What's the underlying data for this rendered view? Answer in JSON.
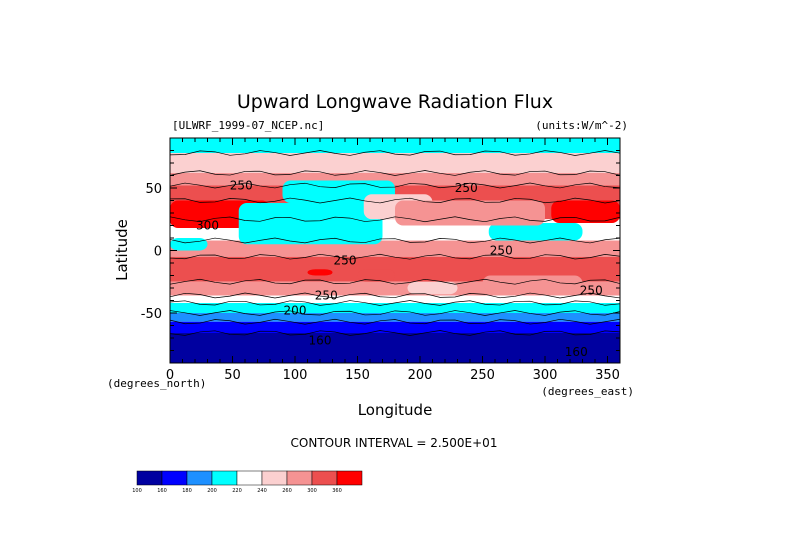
{
  "chart_data": {
    "type": "heatmap",
    "title": "Upward Longwave Radiation Flux",
    "subtitle_left": "[ULWRF_1999-07_NCEP.nc]",
    "subtitle_right": "(units:W/m^-2)",
    "xlabel": "Longitude",
    "ylabel": "Latitude",
    "x_unit_label": "(degrees_east)",
    "y_unit_label": "(degrees_north)",
    "xlim": [
      0,
      360
    ],
    "ylim": [
      -90,
      90
    ],
    "x_ticks": [
      0,
      50,
      100,
      150,
      200,
      250,
      300,
      350
    ],
    "y_ticks": [
      -50,
      0,
      50
    ],
    "contour_interval_text": "CONTOUR INTERVAL = 2.500E+01",
    "contour_labels": [
      {
        "text": "250",
        "lon": 57,
        "lat": 52
      },
      {
        "text": "300",
        "lon": 30,
        "lat": 20
      },
      {
        "text": "250",
        "lon": 237,
        "lat": 50
      },
      {
        "text": "250",
        "lon": 140,
        "lat": -8
      },
      {
        "text": "250",
        "lon": 265,
        "lat": 0
      },
      {
        "text": "250",
        "lon": 125,
        "lat": -36
      },
      {
        "text": "200",
        "lon": 100,
        "lat": -48
      },
      {
        "text": "250",
        "lon": 337,
        "lat": -32
      },
      {
        "text": "160",
        "lon": 120,
        "lat": -72
      },
      {
        "text": "160",
        "lon": 325,
        "lat": -81
      }
    ],
    "colorbar": {
      "levels": [
        "100",
        "160",
        "180",
        "200",
        "220",
        "240",
        "260",
        "300",
        "360"
      ],
      "colors": [
        "#0000a0",
        "#0000ff",
        "#1e90ff",
        "#00ffff",
        "#ffffff",
        "#fbd0d0",
        "#f59393",
        "#ec4f4f",
        "#ff0000"
      ]
    },
    "bands": [
      {
        "lat_top": 90,
        "lat_bottom": 78,
        "color": "#00ffff"
      },
      {
        "lat_top": 78,
        "lat_bottom": 62,
        "color": "#fbd0d0"
      },
      {
        "lat_top": 62,
        "lat_bottom": 52,
        "color": "#f59393"
      },
      {
        "lat_top": 52,
        "lat_bottom": 40,
        "color": "#ec4f4f"
      },
      {
        "lat_top": 40,
        "lat_bottom": 25,
        "color": "#ec4f4f"
      },
      {
        "lat_top": 25,
        "lat_bottom": 8,
        "color": "#ffffff"
      },
      {
        "lat_top": 8,
        "lat_bottom": -5,
        "color": "#f59393"
      },
      {
        "lat_top": -5,
        "lat_bottom": -25,
        "color": "#ec4f4f"
      },
      {
        "lat_top": -25,
        "lat_bottom": -36,
        "color": "#f59393"
      },
      {
        "lat_top": -36,
        "lat_bottom": -42,
        "color": "#ffffff"
      },
      {
        "lat_top": -42,
        "lat_bottom": -50,
        "color": "#00ffff"
      },
      {
        "lat_top": -50,
        "lat_bottom": -57,
        "color": "#1e90ff"
      },
      {
        "lat_top": -57,
        "lat_bottom": -66,
        "color": "#0000ff"
      },
      {
        "lat_top": -66,
        "lat_bottom": -90,
        "color": "#0000a0"
      }
    ],
    "patches": [
      {
        "lon": [
          0,
          80
        ],
        "lat": [
          40,
          18
        ],
        "color": "#ff0000"
      },
      {
        "lon": [
          55,
          170
        ],
        "lat": [
          38,
          5
        ],
        "color": "#00ffff"
      },
      {
        "lon": [
          90,
          180
        ],
        "lat": [
          56,
          38
        ],
        "color": "#00ffff"
      },
      {
        "lon": [
          155,
          210
        ],
        "lat": [
          45,
          25
        ],
        "color": "#fbd0d0"
      },
      {
        "lon": [
          255,
          330
        ],
        "lat": [
          22,
          8
        ],
        "color": "#00ffff"
      },
      {
        "lon": [
          305,
          360
        ],
        "lat": [
          40,
          22
        ],
        "color": "#ff0000"
      },
      {
        "lon": [
          180,
          300
        ],
        "lat": [
          40,
          20
        ],
        "color": "#f59393"
      },
      {
        "lon": [
          0,
          30
        ],
        "lat": [
          10,
          0
        ],
        "color": "#00ffff"
      },
      {
        "lon": [
          110,
          130
        ],
        "lat": [
          -15,
          -20
        ],
        "color": "#ff0000"
      },
      {
        "lon": [
          150,
          180
        ],
        "lat": [
          -15,
          -25
        ],
        "color": "#ec4f4f"
      },
      {
        "lon": [
          190,
          230
        ],
        "lat": [
          -25,
          -35
        ],
        "color": "#fbd0d0"
      },
      {
        "lon": [
          250,
          330
        ],
        "lat": [
          -20,
          -32
        ],
        "color": "#f59393"
      }
    ]
  }
}
